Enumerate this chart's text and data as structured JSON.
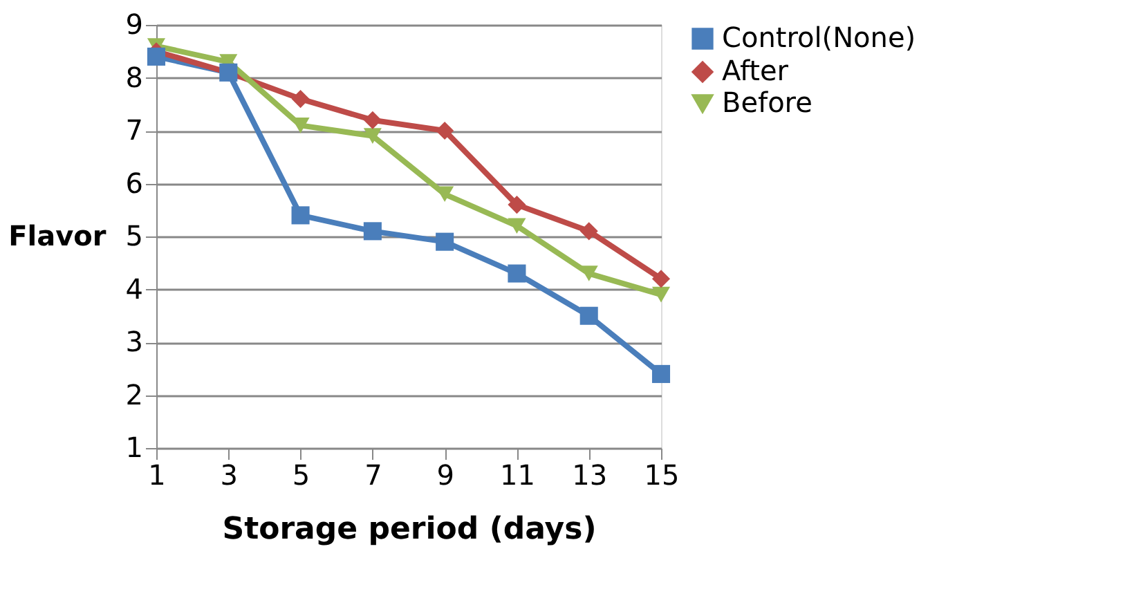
{
  "chart_data": {
    "type": "line",
    "xlabel": "Storage period (days)",
    "ylabel": "Flavor",
    "x": [
      1,
      3,
      5,
      7,
      9,
      11,
      13,
      15
    ],
    "series": [
      {
        "name": "Control(None)",
        "color": "#4a7ebb",
        "marker": "square",
        "values": [
          8.4,
          8.1,
          5.4,
          5.1,
          4.9,
          4.3,
          3.5,
          2.4
        ]
      },
      {
        "name": "After",
        "color": "#be4b48",
        "marker": "diamond",
        "values": [
          8.5,
          8.1,
          7.6,
          7.2,
          7.0,
          5.6,
          5.1,
          4.2
        ]
      },
      {
        "name": "Before",
        "color": "#98b954",
        "marker": "triangle",
        "values": [
          8.6,
          8.3,
          7.1,
          6.9,
          5.8,
          5.2,
          4.3,
          3.9
        ]
      }
    ],
    "xlim": [
      1,
      15
    ],
    "xticks": [
      1,
      3,
      5,
      7,
      9,
      11,
      13,
      15
    ],
    "ylim": [
      1,
      9
    ],
    "yticks": [
      1,
      2,
      3,
      4,
      5,
      6,
      7,
      8,
      9
    ],
    "grid": "y",
    "legend": "right",
    "line_style": "solid"
  }
}
